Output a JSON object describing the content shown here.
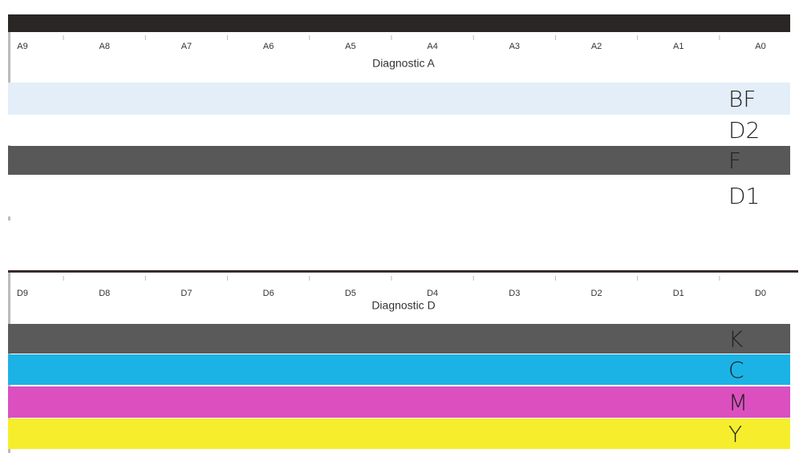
{
  "panels": [
    {
      "scale": [
        "A9",
        "A8",
        "A7",
        "A6",
        "A5",
        "A4",
        "A3",
        "A2",
        "A1",
        "A0"
      ],
      "title": "Diagnostic A",
      "bands": [
        {
          "label": "BF",
          "color": "#e3eef8"
        },
        {
          "label": "D2",
          "color": "#ffffff"
        },
        {
          "label": "F",
          "color": "#585858"
        },
        {
          "label": "D1",
          "color": "#ffffff"
        }
      ]
    },
    {
      "scale": [
        "D9",
        "D8",
        "D7",
        "D6",
        "D5",
        "D4",
        "D3",
        "D2",
        "D1",
        "D0"
      ],
      "title": "Diagnostic D",
      "bands": [
        {
          "label": "K",
          "color": "#5a5a5a"
        },
        {
          "label": "C",
          "color": "#1bb3e6"
        },
        {
          "label": "M",
          "color": "#dc4fbf"
        },
        {
          "label": "Y",
          "color": "#f6ee2c"
        }
      ]
    }
  ]
}
